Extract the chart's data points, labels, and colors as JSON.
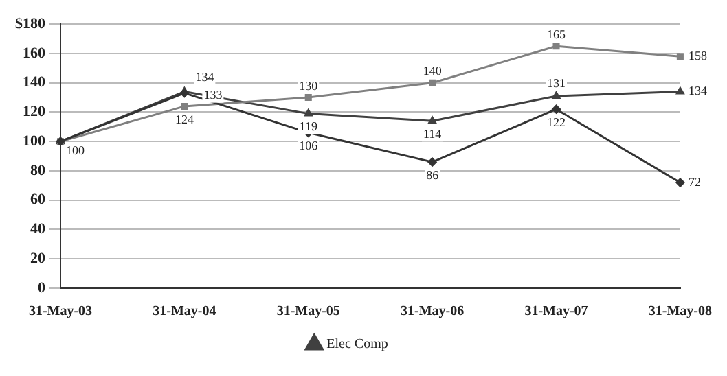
{
  "chart_data": {
    "type": "line",
    "categories": [
      "31-May-03",
      "31-May-04",
      "31-May-05",
      "31-May-06",
      "31-May-07",
      "31-May-08"
    ],
    "series": [
      {
        "color": "#333333",
        "marker": "diamond",
        "values": [
          100,
          133,
          106,
          86,
          122,
          72
        ],
        "value_labels": [
          "100",
          "133",
          "106",
          "86",
          "122",
          "72"
        ]
      },
      {
        "color": "#808080",
        "marker": "square",
        "values": [
          100,
          124,
          130,
          140,
          165,
          158
        ],
        "value_labels": [
          null,
          "124",
          "130",
          "140",
          "165",
          "158"
        ]
      },
      {
        "name": "Elec Comp",
        "color": "#404040",
        "marker": "triangle",
        "values": [
          100,
          134,
          119,
          114,
          131,
          134
        ],
        "value_labels": [
          null,
          "134",
          "119",
          "114",
          "131",
          "134"
        ]
      }
    ],
    "ylim": [
      0,
      180
    ],
    "yticks": [
      0,
      20,
      40,
      60,
      80,
      100,
      120,
      140,
      160,
      {
        "value": 180,
        "label": "$180"
      }
    ],
    "grid": "y",
    "legend": "bottom"
  }
}
